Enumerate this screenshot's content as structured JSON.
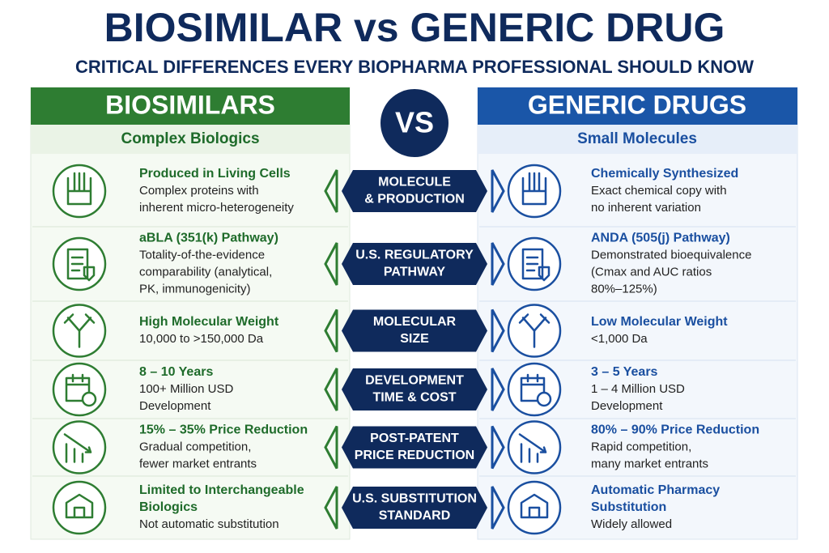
{
  "header": {
    "title": "BIOSIMILAR vs GENERIC DRUG",
    "subtitle": "CRITICAL DIFFERENCES EVERY BIOPHARMA PROFESSIONAL SHOULD KNOW"
  },
  "left": {
    "heading": "BIOSIMILARS",
    "subheading": "Complex Biologics"
  },
  "center": {
    "vs": "VS"
  },
  "right": {
    "heading": "GENERIC DRUGS",
    "subheading": "Small Molecules"
  },
  "rows": [
    {
      "label": [
        "MOLECULE",
        "& PRODUCTION"
      ],
      "left": {
        "title": [
          "Produced in Living Cells"
        ],
        "desc": [
          "Complex proteins with",
          "inherent micro-heterogeneity"
        ]
      },
      "right": {
        "title": [
          "Chemically Synthesized"
        ],
        "desc": [
          "Exact chemical copy with",
          "no inherent variation"
        ]
      }
    },
    {
      "label": [
        "U.S. REGULATORY",
        "PATHWAY"
      ],
      "left": {
        "title": [
          "aBLA (351(k) Pathway)"
        ],
        "desc": [
          "Totality-of-the-evidence",
          "comparability (analytical,",
          "PK, immunogenicity)"
        ]
      },
      "right": {
        "title": [
          "ANDA (505(j) Pathway)"
        ],
        "desc": [
          "Demonstrated bioequivalence",
          "(Cmax and AUC ratios",
          "80%–125%)"
        ]
      }
    },
    {
      "label": [
        "MOLECULAR",
        "SIZE"
      ],
      "left": {
        "title": [
          "High Molecular Weight"
        ],
        "desc": [
          "10,000 to >150,000 Da"
        ]
      },
      "right": {
        "title": [
          "Low Molecular Weight"
        ],
        "desc": [
          "<1,000 Da"
        ]
      }
    },
    {
      "label": [
        "DEVELOPMENT",
        "TIME & COST"
      ],
      "left": {
        "title": [
          "8 – 10 Years"
        ],
        "desc": [
          "100+ Million USD",
          "Development"
        ]
      },
      "right": {
        "title": [
          "3 – 5 Years"
        ],
        "desc": [
          "1 – 4 Million USD",
          "Development"
        ]
      }
    },
    {
      "label": [
        "POST-PATENT",
        "PRICE REDUCTION"
      ],
      "left": {
        "title": [
          "15% – 35% Price Reduction"
        ],
        "desc": [
          "Gradual competition,",
          "fewer market entrants"
        ]
      },
      "right": {
        "title": [
          "80% – 90% Price Reduction"
        ],
        "desc": [
          "Rapid competition,",
          "many market entrants"
        ]
      }
    },
    {
      "label": [
        "U.S. SUBSTITUTION",
        "STANDARD"
      ],
      "left": {
        "title": [
          "Limited to Interchangeable",
          "Biologics"
        ],
        "desc": [
          "Not automatic substitution"
        ]
      },
      "right": {
        "title": [
          "Automatic Pharmacy",
          "Substitution"
        ],
        "desc": [
          "Widely allowed"
        ]
      }
    }
  ]
}
